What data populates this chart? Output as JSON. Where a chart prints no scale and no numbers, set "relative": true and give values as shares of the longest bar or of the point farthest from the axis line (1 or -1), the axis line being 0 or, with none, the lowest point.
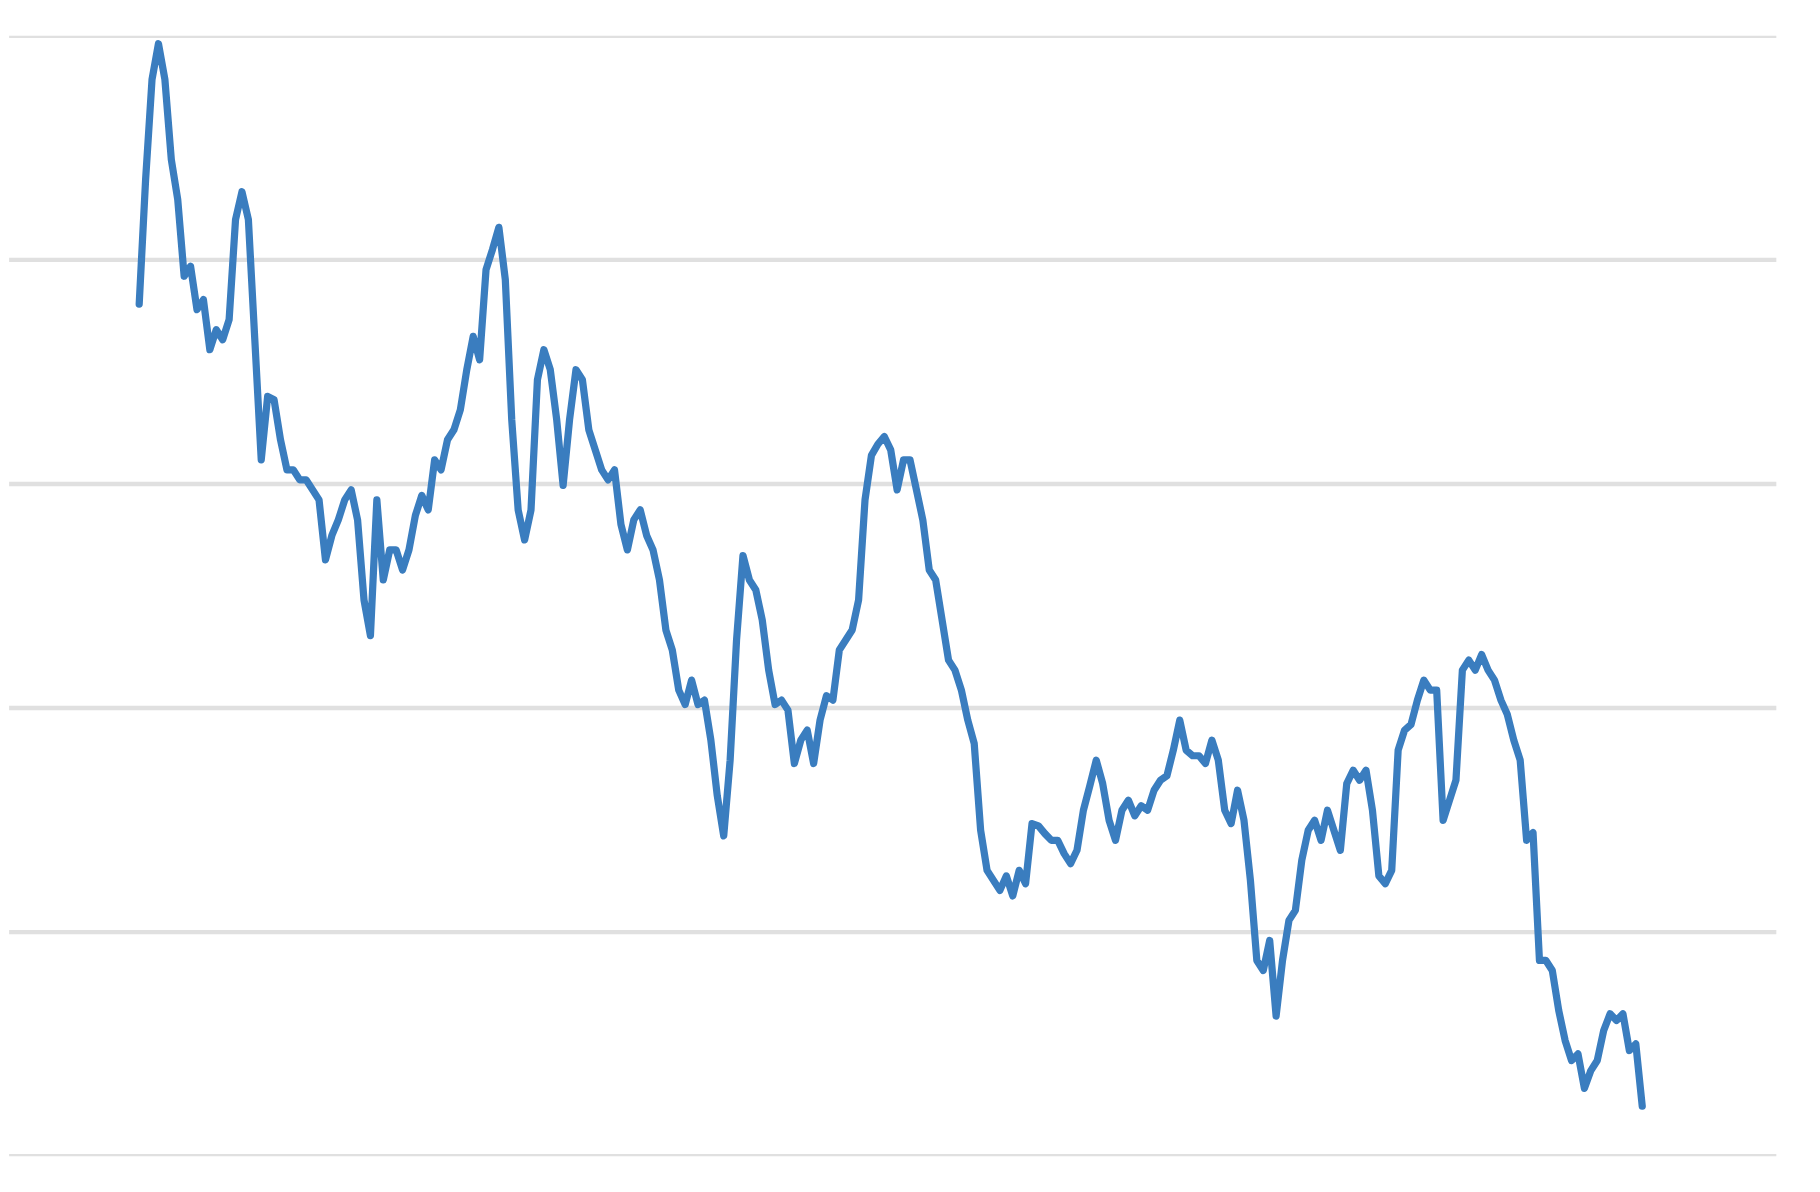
{
  "chart_data": {
    "type": "line",
    "relative": true,
    "grid": "y",
    "tick_labels": false,
    "categories": [
      null,
      null,
      null,
      null,
      null,
      null,
      null,
      null,
      null,
      null,
      null,
      null,
      null,
      null,
      null,
      null,
      null,
      null,
      null,
      null,
      null,
      null,
      null,
      null,
      null,
      null,
      null,
      null,
      null,
      null,
      null,
      null,
      null,
      null,
      null,
      null,
      null,
      null,
      null,
      null,
      null,
      null,
      null,
      null,
      null,
      null,
      null,
      null,
      null,
      null,
      null,
      null,
      null,
      null,
      null,
      null,
      null,
      null,
      null,
      null,
      null,
      null,
      null,
      null,
      null,
      null,
      null,
      null,
      null,
      null,
      null,
      null,
      null,
      null,
      null,
      null,
      null,
      null,
      null,
      null,
      null,
      null,
      null,
      null,
      null,
      null,
      null,
      null,
      null,
      null,
      null,
      null,
      null,
      null,
      null,
      null,
      null,
      null,
      null,
      null,
      null,
      null,
      null,
      null,
      null,
      null,
      null,
      null,
      null,
      null,
      null,
      null,
      null,
      null,
      null,
      null,
      null,
      null,
      null,
      null,
      null,
      null,
      null,
      null,
      null,
      null,
      null,
      null,
      null,
      null,
      null,
      null,
      null,
      null,
      null,
      null,
      null,
      null,
      null,
      null,
      null,
      null,
      null,
      null,
      null,
      null,
      null,
      null,
      null,
      null,
      null,
      null,
      null,
      null,
      null,
      null,
      null,
      null,
      null,
      null,
      null,
      null,
      null,
      null,
      null,
      null,
      null,
      null,
      null,
      null,
      null,
      null,
      null,
      null,
      null,
      null,
      null,
      null,
      null,
      null,
      null,
      null,
      null,
      null,
      null,
      null,
      null,
      null,
      null,
      null,
      null,
      null,
      null,
      null,
      null,
      null,
      null,
      null,
      null,
      null,
      null,
      null,
      null,
      null,
      null,
      null,
      null,
      null,
      null,
      null,
      null,
      null,
      null,
      null,
      null,
      null,
      null,
      null,
      null,
      null,
      null,
      null,
      null,
      null,
      null,
      null,
      null,
      null,
      null,
      null,
      null,
      null,
      null,
      null,
      null
    ],
    "series": [
      {
        "color": "#3a7dbf",
        "values": [
          0.766,
          0.878,
          0.968,
          1,
          0.968,
          0.896,
          0.86,
          0.791,
          0.8,
          0.761,
          0.77,
          0.725,
          0.743,
          0.734,
          0.752,
          0.842,
          0.867,
          0.842,
          0.734,
          0.626,
          0.683,
          0.68,
          0.644,
          0.617,
          0.617,
          0.608,
          0.608,
          0.599,
          0.59,
          0.536,
          0.558,
          0.572,
          0.59,
          0.599,
          0.572,
          0.5,
          0.468,
          0.59,
          0.518,
          0.545,
          0.545,
          0.527,
          0.545,
          0.576,
          0.594,
          0.581,
          0.626,
          0.617,
          0.644,
          0.653,
          0.671,
          0.707,
          0.737,
          0.716,
          0.797,
          0.815,
          0.835,
          0.788,
          0.662,
          0.581,
          0.554,
          0.581,
          0.698,
          0.725,
          0.707,
          0.662,
          0.603,
          0.662,
          0.707,
          0.698,
          0.653,
          0.635,
          0.617,
          0.608,
          0.617,
          0.568,
          0.545,
          0.572,
          0.581,
          0.558,
          0.545,
          0.518,
          0.473,
          0.455,
          0.419,
          0.406,
          0.428,
          0.406,
          0.41,
          0.374,
          0.324,
          0.288,
          0.356,
          0.464,
          0.54,
          0.518,
          0.509,
          0.482,
          0.437,
          0.406,
          0.41,
          0.401,
          0.353,
          0.374,
          0.383,
          0.353,
          0.392,
          0.414,
          0.41,
          0.455,
          0.464,
          0.473,
          0.5,
          0.59,
          0.63,
          0.64,
          0.647,
          0.635,
          0.599,
          0.626,
          0.626,
          0.599,
          0.572,
          0.527,
          0.518,
          0.482,
          0.446,
          0.437,
          0.419,
          0.392,
          0.371,
          0.293,
          0.257,
          0.248,
          0.239,
          0.252,
          0.234,
          0.257,
          0.245,
          0.299,
          0.297,
          0.29,
          0.284,
          0.284,
          0.272,
          0.263,
          0.275,
          0.311,
          0.333,
          0.356,
          0.335,
          0.302,
          0.284,
          0.311,
          0.32,
          0.306,
          0.315,
          0.311,
          0.329,
          0.338,
          0.342,
          0.365,
          0.392,
          0.365,
          0.36,
          0.36,
          0.353,
          0.374,
          0.356,
          0.311,
          0.299,
          0.329,
          0.302,
          0.248,
          0.176,
          0.167,
          0.194,
          0.126,
          0.176,
          0.212,
          0.221,
          0.266,
          0.293,
          0.302,
          0.284,
          0.311,
          0.293,
          0.275,
          0.335,
          0.347,
          0.338,
          0.347,
          0.311,
          0.252,
          0.245,
          0.257,
          0.365,
          0.383,
          0.388,
          0.41,
          0.428,
          0.419,
          0.419,
          0.302,
          0.32,
          0.338,
          0.437,
          0.446,
          0.437,
          0.451,
          0.437,
          0.428,
          0.41,
          0.397,
          0.374,
          0.356,
          0.284,
          0.291,
          0.176,
          0.176,
          0.167,
          0.131,
          0.104,
          0.086,
          0.092,
          0.061,
          0.077,
          0.086,
          0.113,
          0.128,
          0.122,
          0.128,
          0.095,
          0.101,
          0.045
        ]
      }
    ]
  }
}
